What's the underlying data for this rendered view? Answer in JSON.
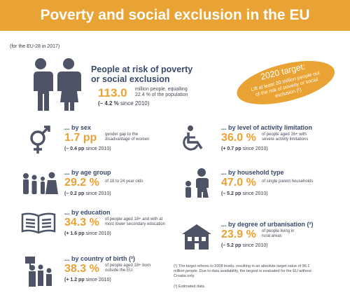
{
  "header": {
    "title": "Poverty and social exclusion in the EU"
  },
  "subtitle": "(for the EU-28 in 2017)",
  "main": {
    "heading_line1": "People at risk of poverty",
    "heading_line2": "or social exclusion",
    "value": "113.0",
    "desc_line1": "million people, equalling",
    "desc_line2": "22.4 % of the population",
    "delta_value": "(– 4.2 %",
    "delta_suffix": "since 2010)"
  },
  "target": {
    "title": "2020 target:",
    "line1": "Lift at least 20 million people out",
    "line2": "of the risk of poverty or social",
    "line3": "exclusion (¹)"
  },
  "sections": {
    "sex": {
      "heading": "... by sex",
      "value": "1.7 pp",
      "desc_line1": "gender gap to the",
      "desc_line2": "disadvantage of women",
      "delta_value": "(– 0.4 pp",
      "delta_suffix": "since 2010)"
    },
    "activity": {
      "heading": "... by level of activity limitation",
      "value": "36.0 %",
      "desc_line1": "of people aged 16+ with",
      "desc_line2": "severe activity limitations",
      "delta_value": "(+ 0.7 pp",
      "delta_suffix": "since 2010)"
    },
    "age": {
      "heading": "... by age group",
      "value": "29.2 %",
      "desc_line1": "of 18 to 24 year olds",
      "desc_line2": "",
      "delta_value": "(– 0.2 pp",
      "delta_suffix": "since 2010)"
    },
    "household": {
      "heading": "... by household type",
      "value": "47.0 %",
      "desc_line1": "of single parent households",
      "desc_line2": "",
      "delta_value": "(– 5.2 pp",
      "delta_suffix": "since 2010)"
    },
    "education": {
      "heading": "... by education",
      "value": "34.3 %",
      "desc_line1": "of people aged 18+ and with at",
      "desc_line2": "most lower secondary education",
      "delta_value": "(+ 1.6 pp",
      "delta_suffix": "since 2010)"
    },
    "urbanisation": {
      "heading": "... by degree of urbanisation (²)",
      "value": "23.9 %",
      "desc_line1": "of people living in",
      "desc_line2": "rural areas",
      "delta_value": "(– 5.2 pp",
      "delta_suffix": "since 2010)"
    },
    "birth": {
      "heading": "... by country of birth (²)",
      "value": "38.3 %",
      "desc_line1": "of people aged 18+ born",
      "desc_line2": "outside the EU",
      "delta_value": "(+ 1.2 pp",
      "delta_suffix": "since 2010)"
    }
  },
  "footnotes": {
    "note1_line1": "(¹) The target referes to 2008 levels, resulting in an absolute target value of 96.1",
    "note1_line2": "million people. Due to data availability, the targest is evaluated for the EU without",
    "note1_line3": "Croatia only.",
    "note2": "(²) Estimated data."
  },
  "colors": {
    "accent": "#e9a234",
    "icon": "#4e5466",
    "heading": "#3a4a6b"
  },
  "icons": [
    "people-icon",
    "gender-icon",
    "wheelchair-icon",
    "family-icon",
    "mother-child-icon",
    "book-icon",
    "house-icon",
    "migrants-icon"
  ]
}
